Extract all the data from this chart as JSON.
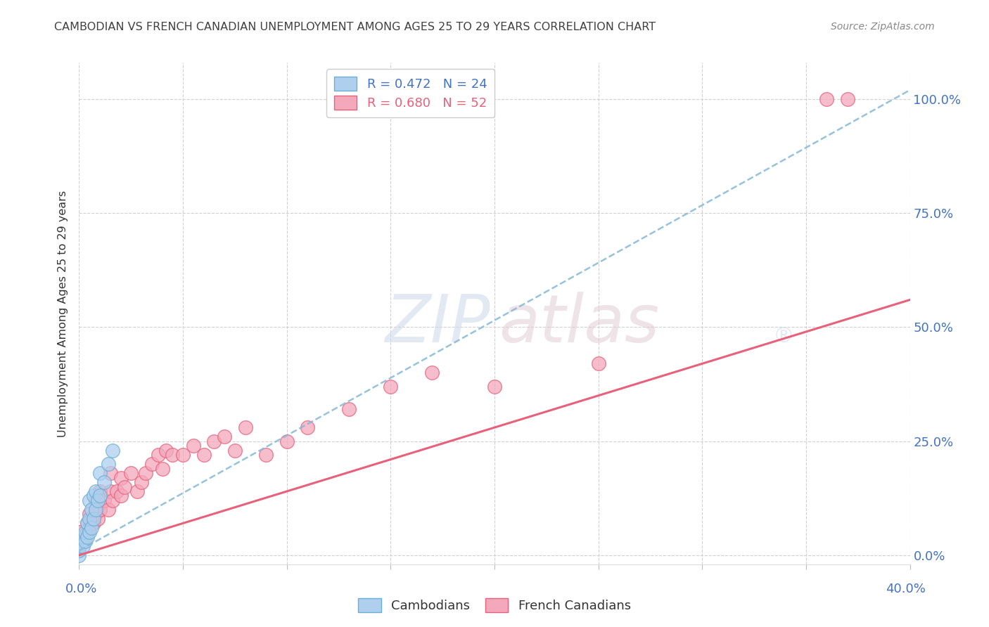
{
  "title": "CAMBODIAN VS FRENCH CANADIAN UNEMPLOYMENT AMONG AGES 25 TO 29 YEARS CORRELATION CHART",
  "source": "Source: ZipAtlas.com",
  "ylabel": "Unemployment Among Ages 25 to 29 years",
  "yticks_labels": [
    "0.0%",
    "25.0%",
    "50.0%",
    "75.0%",
    "100.0%"
  ],
  "yticks_values": [
    0.0,
    0.25,
    0.5,
    0.75,
    1.0
  ],
  "xtick_labels_show": [
    "0.0%",
    "40.0%"
  ],
  "xlim": [
    0.0,
    0.4
  ],
  "ylim": [
    -0.02,
    1.08
  ],
  "legend_cambodian": "R = 0.472   N = 24",
  "legend_french": "R = 0.680   N = 52",
  "cambodian_color": "#aecfee",
  "french_color": "#f4a8bc",
  "cambodian_edge_color": "#6baed6",
  "french_edge_color": "#e8607a",
  "cambodian_line_color": "#85b8d8",
  "french_line_color": "#e8607a",
  "watermark_zip_color": "#ccd8e8",
  "watermark_atlas_color": "#e0ccd4",
  "grid_color": "#cccccc",
  "title_color": "#404040",
  "source_color": "#888888",
  "axis_label_color": "#333333",
  "right_tick_color": "#4472c4",
  "cambodian_scatter_x": [
    0.0,
    0.0,
    0.0,
    0.002,
    0.002,
    0.003,
    0.003,
    0.004,
    0.004,
    0.005,
    0.005,
    0.005,
    0.006,
    0.006,
    0.007,
    0.007,
    0.008,
    0.008,
    0.009,
    0.01,
    0.01,
    0.012,
    0.014,
    0.016
  ],
  "cambodian_scatter_y": [
    0.0,
    0.01,
    0.02,
    0.02,
    0.04,
    0.03,
    0.05,
    0.04,
    0.07,
    0.05,
    0.08,
    0.12,
    0.06,
    0.1,
    0.08,
    0.13,
    0.1,
    0.14,
    0.12,
    0.13,
    0.18,
    0.16,
    0.2,
    0.23
  ],
  "french_scatter_x": [
    0.0,
    0.0,
    0.0,
    0.0,
    0.002,
    0.003,
    0.004,
    0.004,
    0.005,
    0.005,
    0.006,
    0.007,
    0.008,
    0.008,
    0.009,
    0.01,
    0.01,
    0.012,
    0.014,
    0.015,
    0.015,
    0.016,
    0.018,
    0.02,
    0.02,
    0.022,
    0.025,
    0.028,
    0.03,
    0.032,
    0.035,
    0.038,
    0.04,
    0.042,
    0.045,
    0.05,
    0.055,
    0.06,
    0.065,
    0.07,
    0.075,
    0.08,
    0.09,
    0.1,
    0.11,
    0.13,
    0.15,
    0.17,
    0.2,
    0.25,
    0.36,
    0.37
  ],
  "french_scatter_y": [
    0.01,
    0.02,
    0.03,
    0.05,
    0.03,
    0.04,
    0.05,
    0.07,
    0.06,
    0.09,
    0.08,
    0.07,
    0.09,
    0.12,
    0.08,
    0.1,
    0.14,
    0.12,
    0.1,
    0.14,
    0.18,
    0.12,
    0.14,
    0.13,
    0.17,
    0.15,
    0.18,
    0.14,
    0.16,
    0.18,
    0.2,
    0.22,
    0.19,
    0.23,
    0.22,
    0.22,
    0.24,
    0.22,
    0.25,
    0.26,
    0.23,
    0.28,
    0.22,
    0.25,
    0.28,
    0.32,
    0.37,
    0.4,
    0.37,
    0.42,
    1.0,
    1.0
  ],
  "cambodian_line_x": [
    0.0,
    0.4
  ],
  "cambodian_line_y": [
    0.01,
    1.02
  ],
  "french_line_x": [
    0.0,
    0.4
  ],
  "french_line_y": [
    0.0,
    0.56
  ]
}
